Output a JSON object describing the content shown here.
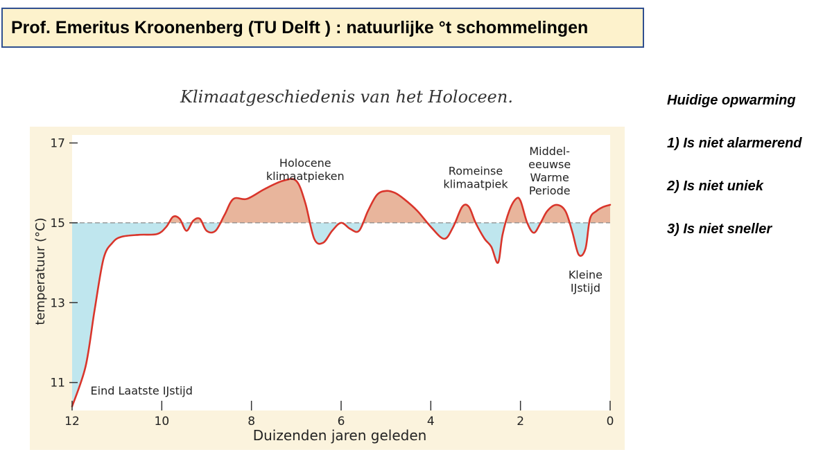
{
  "slide_title": "Prof. Emeritus Kroonenberg (TU Delft ) : natuurlijke °t schommelingen",
  "side_notes": [
    "Huidige opwarming",
    "1) Is niet alarmerend",
    "2) Is niet uniek",
    "3) Is niet sneller"
  ],
  "colors": {
    "line": "#d9352b",
    "warm_fill": "#e8b59c",
    "cold_fill": "#bfe6ee",
    "panel": "#fbf3dd",
    "baseline": "#8a8a8a",
    "title_fill": "#fdf2cc",
    "title_border": "#2f4f8f"
  },
  "chart_data": {
    "type": "area",
    "title": "Klimaatgeschiedenis van het Holoceen.",
    "xlabel": "Duizenden jaren geleden",
    "ylabel": "temperatuur (°C)",
    "xlim": [
      12,
      0
    ],
    "ylim": [
      10.3,
      17.2
    ],
    "xticks": [
      12,
      10,
      8,
      6,
      4,
      2,
      0
    ],
    "yticks": [
      11,
      13,
      15,
      17
    ],
    "baseline": 15,
    "grid": false,
    "legend": "none",
    "series": [
      {
        "x": [
          12,
          11.7,
          11.5,
          11.3,
          11.1,
          10.9,
          10.5,
          10.1,
          9.9,
          9.75,
          9.6,
          9.45,
          9.3,
          9.15,
          9.0,
          8.8,
          8.6,
          8.4,
          8.1,
          7.7,
          7.3,
          7.0,
          6.8,
          6.6,
          6.4,
          6.2,
          6.0,
          5.8,
          5.6,
          5.4,
          5.2,
          5.0,
          4.8,
          4.6,
          4.3,
          4.0,
          3.7,
          3.5,
          3.3,
          3.15,
          3.0,
          2.8,
          2.65,
          2.5,
          2.4,
          2.25,
          2.1,
          2.0,
          1.85,
          1.7,
          1.55,
          1.4,
          1.2,
          1.0,
          0.85,
          0.7,
          0.55,
          0.45,
          0.3,
          0.15,
          0
        ],
        "values": [
          10.4,
          11.4,
          12.8,
          14.1,
          14.5,
          14.65,
          14.7,
          14.72,
          14.9,
          15.15,
          15.1,
          14.8,
          15.05,
          15.1,
          14.8,
          14.8,
          15.2,
          15.6,
          15.6,
          15.85,
          16.05,
          16.05,
          15.5,
          14.6,
          14.5,
          14.8,
          15.0,
          14.85,
          14.8,
          15.3,
          15.7,
          15.8,
          15.75,
          15.6,
          15.3,
          14.9,
          14.6,
          14.9,
          15.4,
          15.4,
          15.0,
          14.6,
          14.4,
          14.0,
          14.7,
          15.3,
          15.6,
          15.55,
          15.0,
          14.75,
          15.0,
          15.3,
          15.45,
          15.3,
          14.8,
          14.2,
          14.35,
          15.1,
          15.3,
          15.4,
          15.45
        ]
      }
    ],
    "annotations": [
      {
        "lines": [
          "Holocene",
          "klimaatpieken"
        ],
        "x": 6.8,
        "y": 16.4
      },
      {
        "lines": [
          "Romeinse",
          "klimaatpiek"
        ],
        "x": 3.0,
        "y": 16.2
      },
      {
        "lines": [
          "Middel-",
          "eeuwse",
          "Warme",
          "Periode"
        ],
        "x": 1.35,
        "y": 16.7
      },
      {
        "lines": [
          "Kleine",
          "IJstijd"
        ],
        "x": 0.55,
        "y": 13.6
      },
      {
        "lines": [
          "Eind Laatste IJstijd"
        ],
        "x": 10.45,
        "y": 10.7
      }
    ]
  }
}
